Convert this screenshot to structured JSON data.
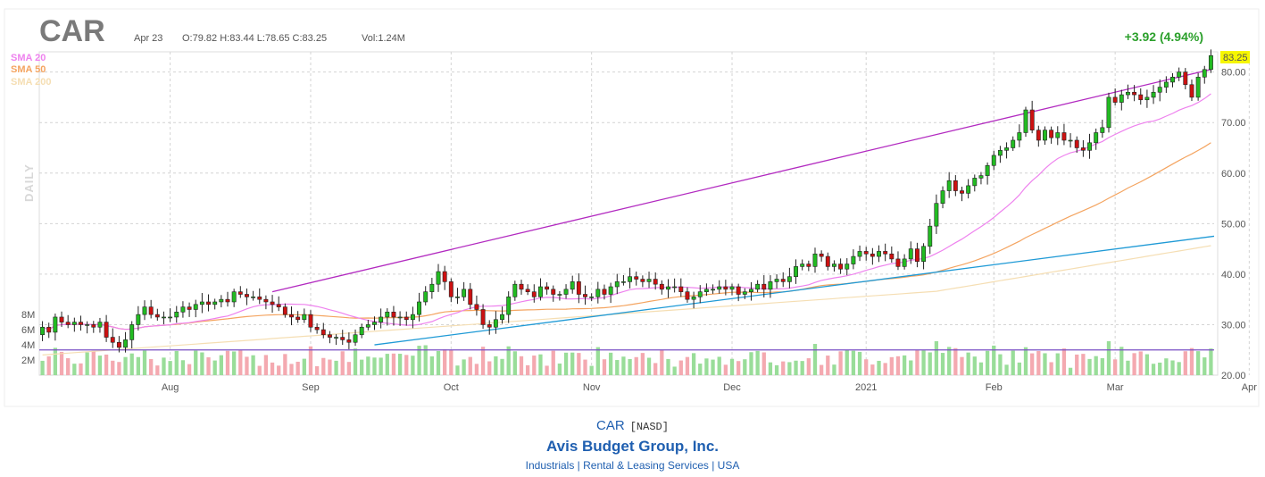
{
  "header": {
    "ticker": "CAR",
    "date": "Apr 23",
    "ohlc": "O:79.82 H:83.44 L:78.65 C:83.25",
    "volume": "Vol:1.24M",
    "change": "+3.92 (4.94%)",
    "last_price": "83.25",
    "period": "DAILY"
  },
  "legend": [
    {
      "label": "SMA 20",
      "color": "#ee82ee"
    },
    {
      "label": "SMA 50",
      "color": "#f4a460"
    },
    {
      "label": "SMA 200",
      "color": "#f5deb3"
    }
  ],
  "colors": {
    "up": "#22bb22",
    "down": "#cc1111",
    "vol_up": "#99dd99",
    "vol_down": "#f4a9b0",
    "trend_upper": "#b22ac0",
    "trend_lower": "#1f9ad6",
    "hline": "#7a4fc4",
    "grid": "#d4d4d4"
  },
  "footer": {
    "ticker": "CAR",
    "exchange": "[NASD]",
    "company": "Avis Budget Group, Inc.",
    "info": "Industrials | Rental & Leasing Services | USA"
  },
  "chart_data": {
    "type": "candlestick",
    "x_labels": [
      "Aug",
      "Sep",
      "Oct",
      "Nov",
      "Dec",
      "2021",
      "Feb",
      "Mar",
      "Apr"
    ],
    "y_ticks": [
      20,
      30,
      40,
      50,
      60,
      70,
      80
    ],
    "ylim": [
      20,
      84
    ],
    "volume_ticks": [
      "2M",
      "4M",
      "6M",
      "8M"
    ],
    "close": [
      29.5,
      28.5,
      31.5,
      30.5,
      30.0,
      30.5,
      30.0,
      30.0,
      29.5,
      30.5,
      27.5,
      26.5,
      25.5,
      27.0,
      30.0,
      32.0,
      33.5,
      32.0,
      31.5,
      31.5,
      31.5,
      32.5,
      33.5,
      33.0,
      34.0,
      34.5,
      34.0,
      34.5,
      35.0,
      34.5,
      36.5,
      36.0,
      35.5,
      35.5,
      35.0,
      34.5,
      34.0,
      33.5,
      32.0,
      31.5,
      31.0,
      32.0,
      29.5,
      29.0,
      28.0,
      27.5,
      27.5,
      27.0,
      26.5,
      28.0,
      29.5,
      30.0,
      30.5,
      31.5,
      32.5,
      31.5,
      31.5,
      31.0,
      32.0,
      34.5,
      36.5,
      38.0,
      40.5,
      38.5,
      35.5,
      35.5,
      37.0,
      34.0,
      33.0,
      30.0,
      29.5,
      31.0,
      32.0,
      35.5,
      38.0,
      37.0,
      36.5,
      35.5,
      37.5,
      37.0,
      36.0,
      36.0,
      37.0,
      38.5,
      36.0,
      35.5,
      35.5,
      37.0,
      36.0,
      37.5,
      38.5,
      38.5,
      39.5,
      39.0,
      38.5,
      39.0,
      38.0,
      37.0,
      37.5,
      37.5,
      36.5,
      35.0,
      35.5,
      36.5,
      37.0,
      37.0,
      37.5,
      37.0,
      37.5,
      36.0,
      36.5,
      37.0,
      38.0,
      37.0,
      38.5,
      39.0,
      38.5,
      39.5,
      41.5,
      42.0,
      41.5,
      44.0,
      43.5,
      41.5,
      42.0,
      41.0,
      42.0,
      43.5,
      44.5,
      44.0,
      43.5,
      44.5,
      44.0,
      43.0,
      41.5,
      43.0,
      45.0,
      42.5,
      45.5,
      49.5,
      54.0,
      56.5,
      58.5,
      56.5,
      56.0,
      57.5,
      59.0,
      59.5,
      61.5,
      63.5,
      64.5,
      65.0,
      66.5,
      68.0,
      72.5,
      68.5,
      66.5,
      68.5,
      67.0,
      68.0,
      66.5,
      66.5,
      65.0,
      64.5,
      66.0,
      68.0,
      69.0,
      75.0,
      74.0,
      75.5,
      76.0,
      75.5,
      74.5,
      75.0,
      76.0,
      77.0,
      78.0,
      79.0,
      80.0,
      77.5,
      75.0,
      79.0,
      80.5,
      83.25
    ]
  }
}
